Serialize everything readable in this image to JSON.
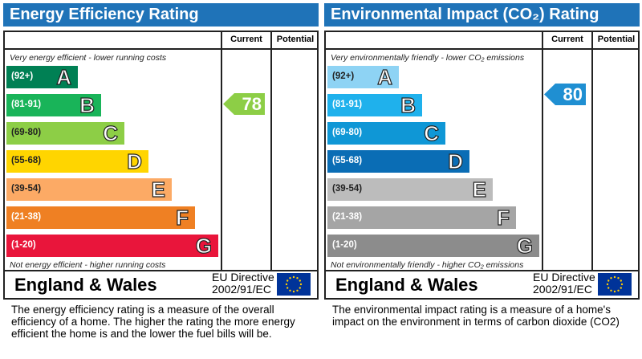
{
  "chart_data": [
    {
      "type": "bar",
      "title": "Energy Efficiency Rating",
      "columns": [
        "Current",
        "Potential"
      ],
      "top_note": "Very energy efficient - lower running costs",
      "bottom_note": "Not energy efficient - higher running costs",
      "bands": [
        {
          "range": "(92+)",
          "letter": "A",
          "color": "#008054"
        },
        {
          "range": "(81-91)",
          "letter": "B",
          "color": "#19b459"
        },
        {
          "range": "(69-80)",
          "letter": "C",
          "color": "#8dce46"
        },
        {
          "range": "(55-68)",
          "letter": "D",
          "color": "#ffd500"
        },
        {
          "range": "(39-54)",
          "letter": "E",
          "color": "#fcaa65"
        },
        {
          "range": "(21-38)",
          "letter": "F",
          "color": "#ef8023"
        },
        {
          "range": "(1-20)",
          "letter": "G",
          "color": "#e9153b"
        }
      ],
      "current": {
        "value": "78",
        "color": "#8dce46"
      },
      "potential": null,
      "region": "England & Wales",
      "directive_1": "EU Directive",
      "directive_2": "2002/91/EC",
      "description": "The energy efficiency rating is a measure of the overall efficiency of a home.  The higher the rating the more energy efficient the home is and the lower the fuel bills will be."
    },
    {
      "type": "bar",
      "title": "Environmental Impact (CO₂) Rating",
      "columns": [
        "Current",
        "Potential"
      ],
      "top_note": "Very environmentally friendly - lower CO₂ emissions",
      "bottom_note": "Not environmentally friendly - higher CO₂ emissions",
      "bands": [
        {
          "range": "(92+)",
          "letter": "A",
          "color": "#8ed3f4"
        },
        {
          "range": "(81-91)",
          "letter": "B",
          "color": "#1fb1ec"
        },
        {
          "range": "(69-80)",
          "letter": "C",
          "color": "#0f97d6"
        },
        {
          "range": "(55-68)",
          "letter": "D",
          "color": "#0a6db5"
        },
        {
          "range": "(39-54)",
          "letter": "E",
          "color": "#bcbcbc"
        },
        {
          "range": "(21-38)",
          "letter": "F",
          "color": "#a5a5a5"
        },
        {
          "range": "(1-20)",
          "letter": "G",
          "color": "#8c8c8c"
        }
      ],
      "current": {
        "value": "80",
        "color": "#1f8fd2"
      },
      "potential": null,
      "region": "England & Wales",
      "directive_1": "EU Directive",
      "directive_2": "2002/91/EC",
      "description": "The environmental impact rating is a measure of a home's impact on the environment in terms of carbon dioxide (CO2)"
    }
  ]
}
